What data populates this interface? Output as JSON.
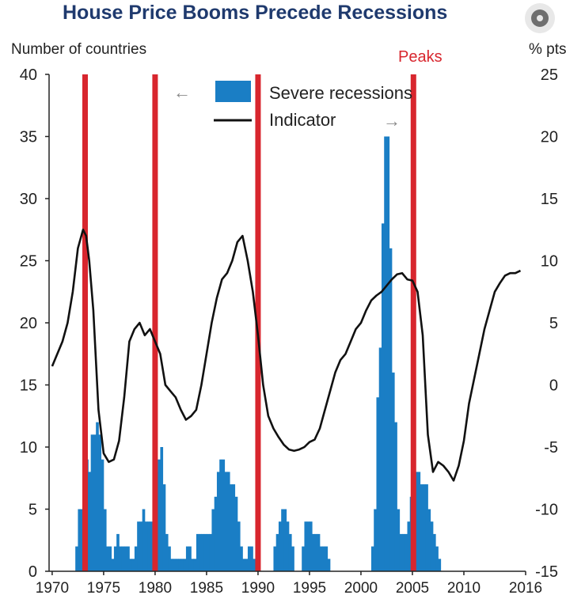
{
  "title": "House Price Booms Precede Recessions",
  "chart_data": {
    "type": "bar+line",
    "left_axis_label": "Number of countries",
    "right_axis_label": "% pts",
    "peaks_label": "Peaks",
    "left_ylim": [
      0,
      40
    ],
    "left_ticks": [
      0,
      5,
      10,
      15,
      20,
      25,
      30,
      35,
      40
    ],
    "right_ylim": [
      -15,
      25
    ],
    "right_ticks": [
      -15,
      -10,
      -5,
      0,
      5,
      10,
      15,
      20,
      25
    ],
    "x_ticks": [
      1970,
      1975,
      1980,
      1985,
      1990,
      1995,
      2000,
      2005,
      2010,
      2016
    ],
    "xlim": [
      1969.7,
      2016.0
    ],
    "legend": {
      "bars": "Severe recessions",
      "line": "Indicator",
      "left_arrow": "←",
      "right_arrow": "→"
    },
    "bar_color": "#1a7ec5",
    "line_color": "#111111",
    "peak_color": "#d8262e",
    "peaks": [
      1973.2,
      1980.0,
      1990.0,
      2005.1
    ],
    "bars": {
      "name": "Severe recessions",
      "start": 1972.25,
      "step": 0.25,
      "values": [
        2,
        5,
        5,
        9,
        9,
        8,
        11,
        11,
        12,
        11,
        9,
        5,
        2,
        2,
        1,
        2,
        3,
        2,
        2,
        2,
        2,
        1,
        1,
        2,
        4,
        4,
        5,
        4,
        4,
        4,
        5,
        8,
        9,
        10,
        7,
        3,
        2,
        1,
        1,
        1,
        1,
        1,
        1,
        2,
        2,
        1,
        1,
        3,
        3,
        3,
        3,
        3,
        3,
        5,
        6,
        8,
        9,
        9,
        8,
        8,
        7,
        7,
        6,
        4,
        2,
        1,
        1,
        2,
        2,
        1,
        1,
        0,
        0,
        0,
        0,
        0,
        0,
        2,
        3,
        4,
        5,
        5,
        4,
        3,
        2,
        0,
        0,
        0,
        2,
        4,
        4,
        4,
        3,
        3,
        3,
        2,
        2,
        2,
        1,
        0,
        0,
        0,
        0,
        0,
        0,
        0,
        0,
        0,
        0,
        0,
        0,
        0,
        0,
        0,
        0,
        2,
        5,
        14,
        18,
        28,
        35,
        35,
        26,
        16,
        12,
        5,
        3,
        3,
        3,
        4,
        6,
        7,
        8,
        8,
        7,
        7,
        7,
        5,
        4,
        3,
        2,
        1
      ]
    },
    "indicator": {
      "name": "Indicator",
      "x": [
        1970.0,
        1970.5,
        1971.0,
        1971.5,
        1972.0,
        1972.5,
        1973.0,
        1973.3,
        1973.6,
        1974.0,
        1974.5,
        1975.0,
        1975.5,
        1976.0,
        1976.5,
        1977.0,
        1977.5,
        1978.0,
        1978.5,
        1979.0,
        1979.5,
        1980.0,
        1980.5,
        1981.0,
        1981.5,
        1982.0,
        1982.5,
        1983.0,
        1983.5,
        1984.0,
        1984.5,
        1985.0,
        1985.5,
        1986.0,
        1986.5,
        1987.0,
        1987.5,
        1988.0,
        1988.5,
        1989.0,
        1989.5,
        1990.0,
        1990.5,
        1991.0,
        1991.5,
        1992.0,
        1992.5,
        1993.0,
        1993.5,
        1994.0,
        1994.5,
        1995.0,
        1995.5,
        1996.0,
        1996.5,
        1997.0,
        1997.5,
        1998.0,
        1998.5,
        1999.0,
        1999.5,
        2000.0,
        2000.5,
        2001.0,
        2001.5,
        2002.0,
        2002.5,
        2003.0,
        2003.5,
        2004.0,
        2004.5,
        2005.0,
        2005.5,
        2006.0,
        2006.5,
        2007.0,
        2007.5,
        2008.0,
        2008.5,
        2009.0,
        2009.5,
        2010.0,
        2010.5,
        2011.0,
        2011.5,
        2012.0,
        2012.5,
        2013.0,
        2013.5,
        2014.0,
        2014.5,
        2015.0,
        2015.5
      ],
      "y": [
        1.5,
        2.5,
        3.5,
        5.0,
        7.5,
        11.0,
        12.5,
        12.0,
        10.0,
        6.0,
        -2.0,
        -5.5,
        -6.2,
        -6.0,
        -4.5,
        -1.0,
        3.5,
        4.5,
        5.0,
        4.0,
        4.5,
        3.5,
        2.5,
        0.0,
        -0.5,
        -1.0,
        -2.0,
        -2.8,
        -2.5,
        -2.0,
        0.0,
        2.5,
        5.0,
        7.0,
        8.5,
        9.0,
        10.0,
        11.5,
        12.0,
        10.0,
        7.5,
        4.0,
        0.0,
        -2.5,
        -3.5,
        -4.2,
        -4.8,
        -5.2,
        -5.3,
        -5.2,
        -5.0,
        -4.6,
        -4.4,
        -3.5,
        -2.0,
        -0.5,
        1.0,
        2.0,
        2.5,
        3.5,
        4.5,
        5.0,
        6.0,
        6.8,
        7.2,
        7.5,
        8.0,
        8.5,
        8.9,
        9.0,
        8.5,
        8.4,
        7.5,
        4.0,
        -4.0,
        -7.0,
        -6.2,
        -6.5,
        -7.0,
        -7.7,
        -6.5,
        -4.5,
        -1.5,
        0.5,
        2.5,
        4.5,
        6.0,
        7.5,
        8.2,
        8.8,
        9.0,
        9.0,
        9.2
      ]
    }
  }
}
